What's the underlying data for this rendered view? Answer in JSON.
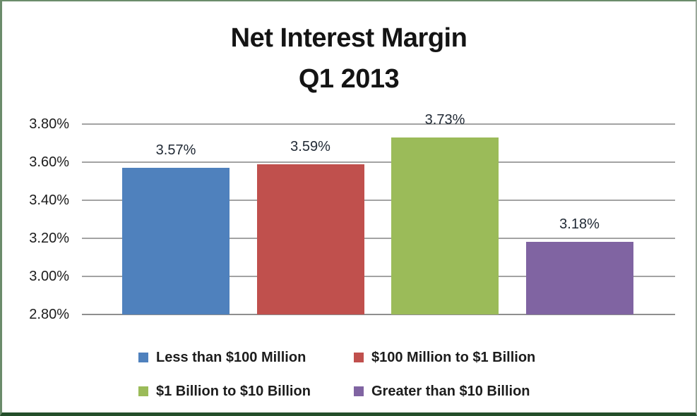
{
  "chart_data": {
    "type": "bar",
    "title_line1": "Net Interest Margin",
    "title_line2": "Q1 2013",
    "categories": [
      "Less than $100 Million",
      "$100 Million to $1 Billion",
      "$1 Billion to $10 Billion",
      "Greater than $10 Billion"
    ],
    "values": [
      3.57,
      3.59,
      3.73,
      3.18
    ],
    "value_labels": [
      "3.57%",
      "3.59%",
      "3.73%",
      "3.18%"
    ],
    "bar_colors": [
      "#4F81BD",
      "#C0504D",
      "#9BBB59",
      "#8064A2"
    ],
    "y_axis": {
      "min": 2.8,
      "max": 3.8,
      "step": 0.2,
      "tick_labels": [
        "2.80%",
        "3.00%",
        "3.20%",
        "3.40%",
        "3.60%",
        "3.80%"
      ]
    },
    "grid": true,
    "legend": {
      "position": "bottom",
      "rows": [
        [
          0,
          1
        ],
        [
          2,
          3
        ]
      ]
    }
  },
  "colors": {
    "gridline": "#a3a3a3",
    "axis_line": "#8e8e8e",
    "frame_border": "#6b8c6b",
    "frame_border_bottom": "#234e2a",
    "background": "#ffffff"
  }
}
